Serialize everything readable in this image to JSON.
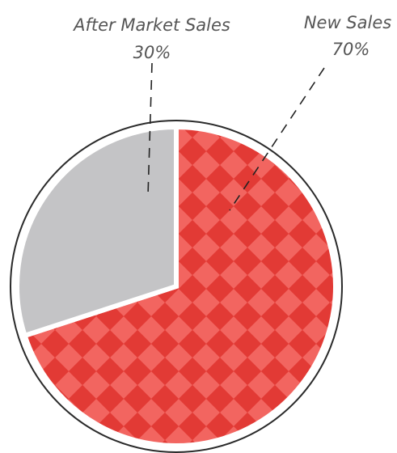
{
  "chart_data": {
    "type": "pie",
    "title": "",
    "slices": [
      {
        "name": "New Sales",
        "value": 70,
        "value_label": "70%",
        "color": "#e8403a",
        "pattern_color": "#f0625c"
      },
      {
        "name": "After Market Sales",
        "value": 30,
        "value_label": "30%",
        "color": "#c4c4c6"
      }
    ],
    "legend": "none",
    "labels": "outside-with-dashed-leaders"
  }
}
